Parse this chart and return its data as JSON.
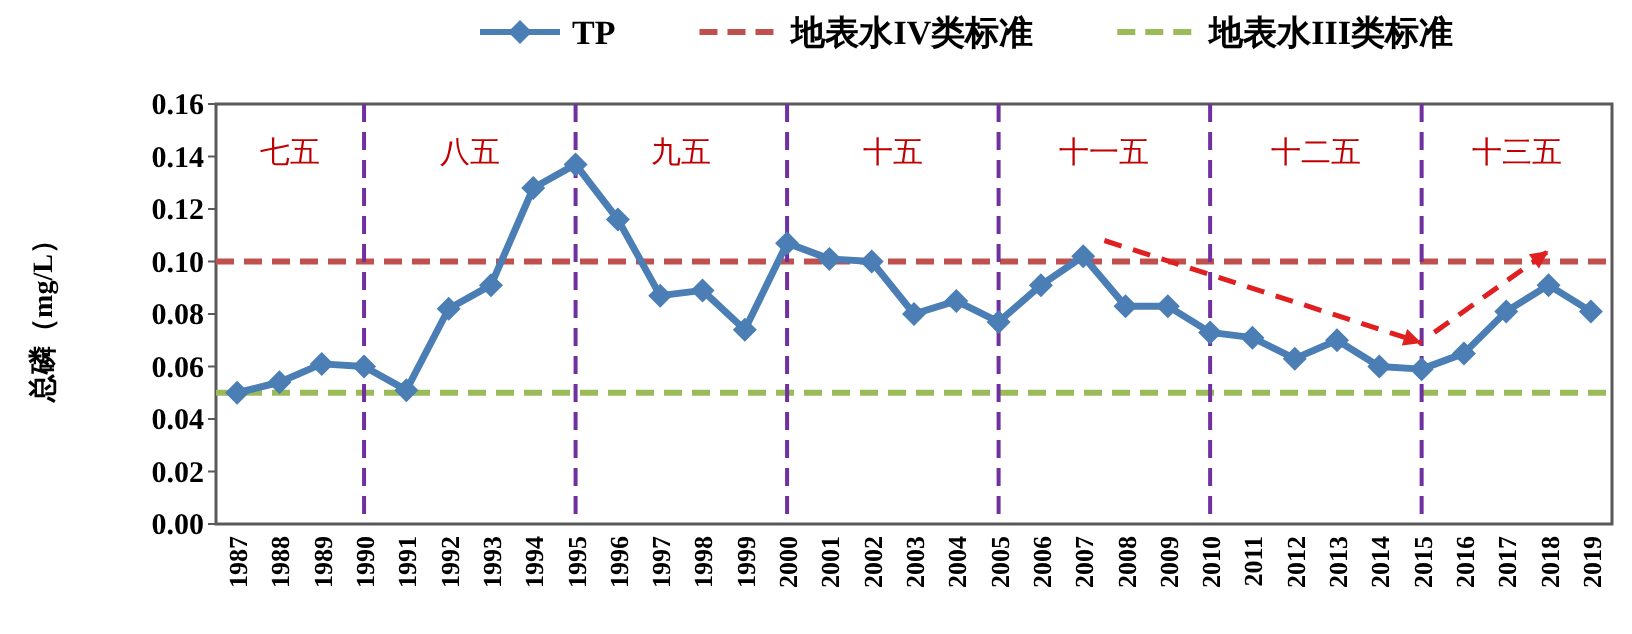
{
  "chart_data": {
    "type": "line",
    "ylabel": "总磷（mg/L）",
    "categories": [
      "1987",
      "1988",
      "1989",
      "1990",
      "1991",
      "1992",
      "1993",
      "1994",
      "1995",
      "1996",
      "1997",
      "1998",
      "1999",
      "2000",
      "2001",
      "2002",
      "2003",
      "2004",
      "2005",
      "2006",
      "2007",
      "2008",
      "2009",
      "2010",
      "2011",
      "2012",
      "2013",
      "2014",
      "2015",
      "2016",
      "2017",
      "2018",
      "2019"
    ],
    "series": [
      {
        "name": "TP",
        "color": "#4a7eb4",
        "values": [
          0.05,
          0.054,
          0.061,
          0.06,
          0.051,
          0.082,
          0.091,
          0.128,
          0.137,
          0.116,
          0.087,
          0.089,
          0.074,
          0.107,
          0.101,
          0.1,
          0.08,
          0.085,
          0.077,
          0.091,
          0.102,
          0.083,
          0.083,
          0.073,
          0.071,
          0.063,
          0.07,
          0.06,
          0.059,
          0.065,
          0.081,
          0.091,
          0.081
        ]
      }
    ],
    "marker": "diamond",
    "line_style": "solid",
    "legend": "top",
    "grid": false,
    "ylim": [
      0,
      0.16
    ],
    "yticks": [
      {
        "value": 0,
        "label": "0.00"
      },
      {
        "value": 0.02,
        "label": "0.02"
      },
      {
        "value": 0.04,
        "label": "0.04"
      },
      {
        "value": 0.06,
        "label": "0.06"
      },
      {
        "value": 0.08,
        "label": "0.08"
      },
      {
        "value": 0.1,
        "label": "0.10"
      },
      {
        "value": 0.12,
        "label": "0.12"
      },
      {
        "value": 0.14,
        "label": "0.14"
      },
      {
        "value": 0.16,
        "label": "0.16"
      }
    ],
    "ref_lines": [
      {
        "axis": "y",
        "value": 0.1,
        "label": "地表水IV类标准",
        "color": "#c0504d",
        "line_style": "dashed"
      },
      {
        "axis": "y",
        "value": 0.05,
        "label": "地表水III类标准",
        "color": "#9bbb59",
        "line_style": "dashed"
      },
      {
        "axis": "x",
        "value": "1990",
        "color": "#7030a0",
        "line_style": "dashed"
      },
      {
        "axis": "x",
        "value": "1995",
        "color": "#7030a0",
        "line_style": "dashed"
      },
      {
        "axis": "x",
        "value": "2000",
        "color": "#7030a0",
        "line_style": "dashed"
      },
      {
        "axis": "x",
        "value": "2005",
        "color": "#7030a0",
        "line_style": "dashed"
      },
      {
        "axis": "x",
        "value": "2010",
        "color": "#7030a0",
        "line_style": "dashed"
      },
      {
        "axis": "x",
        "value": "2015",
        "color": "#7030a0",
        "line_style": "dashed"
      }
    ],
    "annotations": [
      "七五",
      "八五",
      "九五",
      "十五",
      "十一五",
      "十二五",
      "十三五"
    ]
  }
}
